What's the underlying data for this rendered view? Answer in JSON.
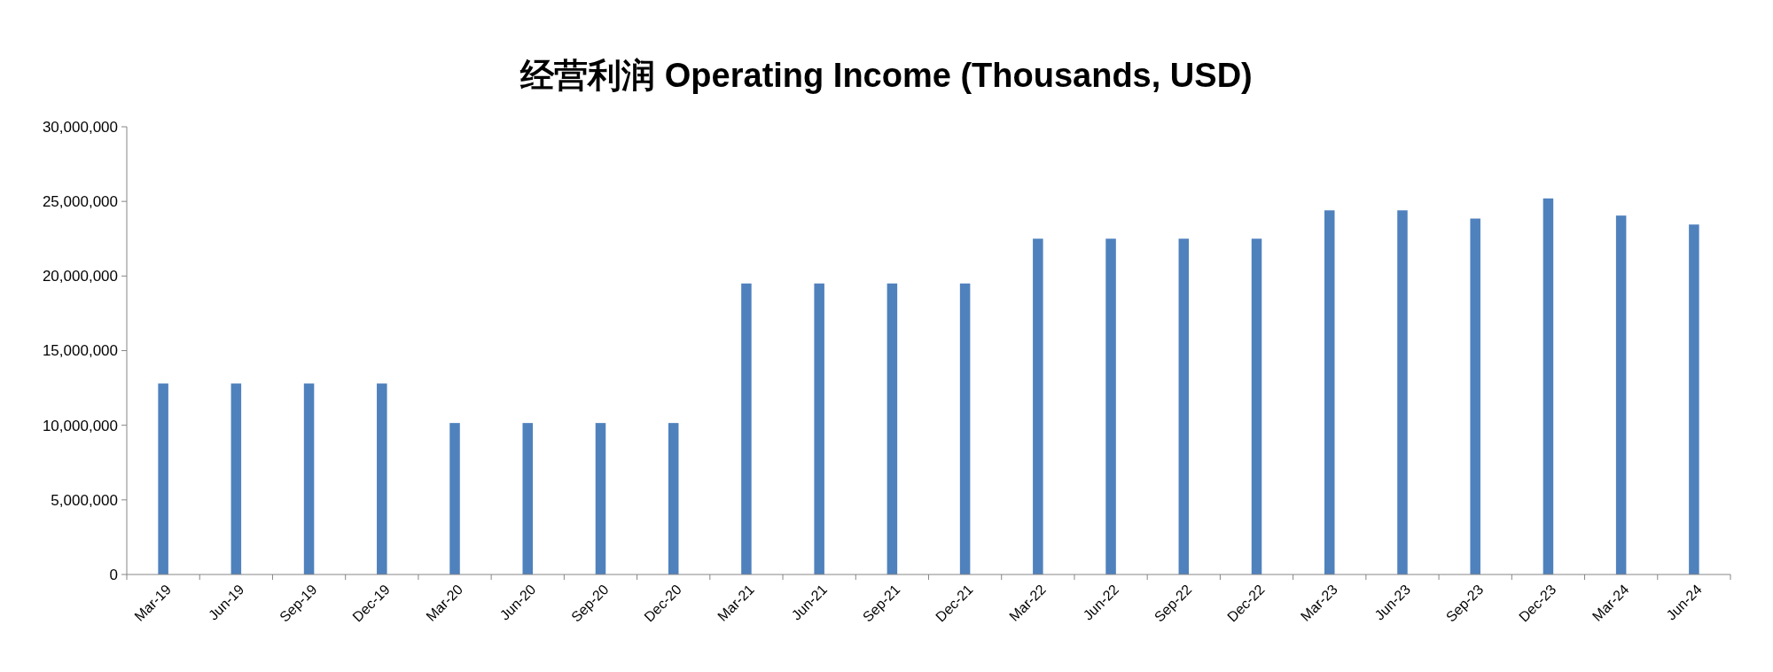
{
  "chart_data": {
    "type": "bar",
    "title": "经营利润 Operating Income (Thousands, USD)",
    "categories": [
      "Mar-19",
      "Jun-19",
      "Sep-19",
      "Dec-19",
      "Mar-20",
      "Jun-20",
      "Sep-20",
      "Dec-20",
      "Mar-21",
      "Jun-21",
      "Sep-21",
      "Dec-21",
      "Mar-22",
      "Jun-22",
      "Sep-22",
      "Dec-22",
      "Mar-23",
      "Jun-23",
      "Sep-23",
      "Dec-23",
      "Mar-24",
      "Jun-24"
    ],
    "values": [
      12800000,
      12800000,
      12800000,
      12800000,
      10150000,
      10150000,
      10150000,
      10150000,
      19500000,
      19500000,
      19500000,
      19500000,
      22500000,
      22500000,
      22500000,
      22500000,
      24400000,
      24400000,
      23850000,
      25200000,
      24050000,
      23450000
    ],
    "color": "#4f81bd",
    "ylim": [
      0,
      30000000
    ],
    "yticks": [
      {
        "value": 0,
        "label": "0"
      },
      {
        "value": 5000000,
        "label": "5,000,000"
      },
      {
        "value": 10000000,
        "label": "10,000,000"
      },
      {
        "value": 15000000,
        "label": "15,000,000"
      },
      {
        "value": 20000000,
        "label": "20,000,000"
      },
      {
        "value": 25000000,
        "label": "25,000,000"
      },
      {
        "value": 30000000,
        "label": "30,000,000"
      }
    ],
    "grid": false
  }
}
